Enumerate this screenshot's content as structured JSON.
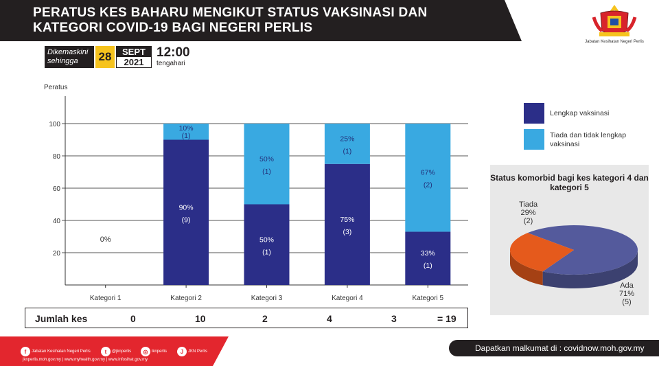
{
  "banner": {
    "title_line1": "PERATUS KES BAHARU MENGIKUT STATUS VAKSINASI  DAN",
    "title_line2": "KATEGORI COVID-19 BAGI NEGERI PERLIS"
  },
  "logo": {
    "icon": "coat-of-arms",
    "label": "Jabatan Kesihatan Negeri Perlis"
  },
  "date": {
    "updated_label_1": "Dikemaskini",
    "updated_label_2": "sehingga",
    "day": "28",
    "month": "SEPT",
    "year": "2021",
    "time": "12:00",
    "time_label": "tengahari"
  },
  "chart_data": [
    {
      "type": "bar",
      "stacked": true,
      "ylabel": "Peratus",
      "ylim": [
        0,
        100
      ],
      "yticks": [
        20,
        40,
        60,
        80,
        100
      ],
      "categories": [
        "Kategori 1",
        "Kategori 2",
        "Kategori 3",
        "Kategori 4",
        "Kategori 5"
      ],
      "series": [
        {
          "name": "Lengkap vaksinasi",
          "color": "#2b2e88",
          "values": [
            0,
            90,
            50,
            75,
            33
          ],
          "pct_labels": [
            "0%",
            "90%",
            "50%",
            "75%",
            "33%"
          ],
          "count_labels": [
            "",
            "(9)",
            "(1)",
            "(3)",
            "(1)"
          ]
        },
        {
          "name": "Tiada dan tidak lengkap vaksinasi",
          "color": "#39a9e1",
          "values": [
            0,
            10,
            50,
            25,
            67
          ],
          "pct_labels": [
            "",
            "10%",
            "50%",
            "25%",
            "67%"
          ],
          "count_labels": [
            "",
            "(1)",
            "(1)",
            "(1)",
            "(2)"
          ]
        }
      ],
      "gridlines": true,
      "legend_position": "right"
    },
    {
      "type": "pie",
      "title": "Status komorbid bagi kes kategori 4 dan kategori 5",
      "slices": [
        {
          "label": "Ada",
          "pct_label": "71%",
          "count_label": "(5)",
          "value": 71,
          "color": "#545a9c"
        },
        {
          "label": "Tiada",
          "pct_label": "29%",
          "count_label": "(2)",
          "value": 29,
          "color": "#e55a1c"
        }
      ]
    }
  ],
  "legend_items": [
    {
      "label_1": "Lengkap vaksinasi",
      "label_2": "",
      "color": "#2b2e88"
    },
    {
      "label_1": "Tiada dan tidak lengkap",
      "label_2": "vaksinasi",
      "color": "#39a9e1"
    }
  ],
  "counts": {
    "label": "Jumlah kes",
    "values": [
      "0",
      "10",
      "2",
      "4",
      "3"
    ],
    "total": "= 19"
  },
  "footer": {
    "social": [
      {
        "icon": "facebook-icon",
        "glyph": "f",
        "text": "Jabatan Kesihatan Negeri Perlis"
      },
      {
        "icon": "twitter-icon",
        "glyph": "t",
        "text": "@jknperlis"
      },
      {
        "icon": "instagram-icon",
        "glyph": "◎",
        "text": "iknperlis"
      },
      {
        "icon": "jkn-icon",
        "glyph": "J",
        "text": "JKN Perlis"
      }
    ],
    "links": "jknperlis.moh.gov.my  |  www.myhealth.gov.my  |  www.infosihat.gov.my",
    "info": "Dapatkan malkumat di : covidnow.moh.gov.my"
  }
}
